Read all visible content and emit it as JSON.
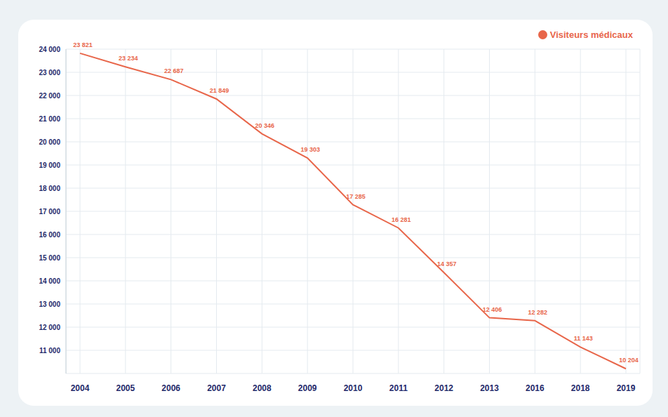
{
  "chart_data": {
    "type": "line",
    "categories": [
      "2004",
      "2005",
      "2006",
      "2007",
      "2008",
      "2009",
      "2010",
      "2011",
      "2012",
      "2013",
      "2016",
      "2018",
      "2019"
    ],
    "series": [
      {
        "name": "Visiteurs médicaux",
        "color": "#e8664a",
        "values": [
          23821,
          23234,
          22687,
          21849,
          20346,
          19303,
          17285,
          16281,
          14357,
          12406,
          12282,
          11143,
          10204
        ],
        "value_labels": [
          "23 821",
          "23 234",
          "22 687",
          "21 849",
          "20 346",
          "19 303",
          "17 285",
          "16 281",
          "14 357",
          "12 406",
          "12 282",
          "11 143",
          "10 204"
        ]
      }
    ],
    "ylim": [
      10000,
      24000
    ],
    "yticks": [
      {
        "value": 11000,
        "label": "11 000"
      },
      {
        "value": 12000,
        "label": "12 000"
      },
      {
        "value": 13000,
        "label": "13 000"
      },
      {
        "value": 14000,
        "label": "14 000"
      },
      {
        "value": 15000,
        "label": "15 000"
      },
      {
        "value": 16000,
        "label": "16 000"
      },
      {
        "value": 17000,
        "label": "17 000"
      },
      {
        "value": 18000,
        "label": "18 000"
      },
      {
        "value": 19000,
        "label": "19 000"
      },
      {
        "value": 20000,
        "label": "20 000"
      },
      {
        "value": 21000,
        "label": "21 000"
      },
      {
        "value": 22000,
        "label": "22 000"
      },
      {
        "value": 23000,
        "label": "23 000"
      },
      {
        "value": 24000,
        "label": "24 000"
      }
    ],
    "grid": true,
    "legend": "top-right",
    "data_labels": true
  }
}
